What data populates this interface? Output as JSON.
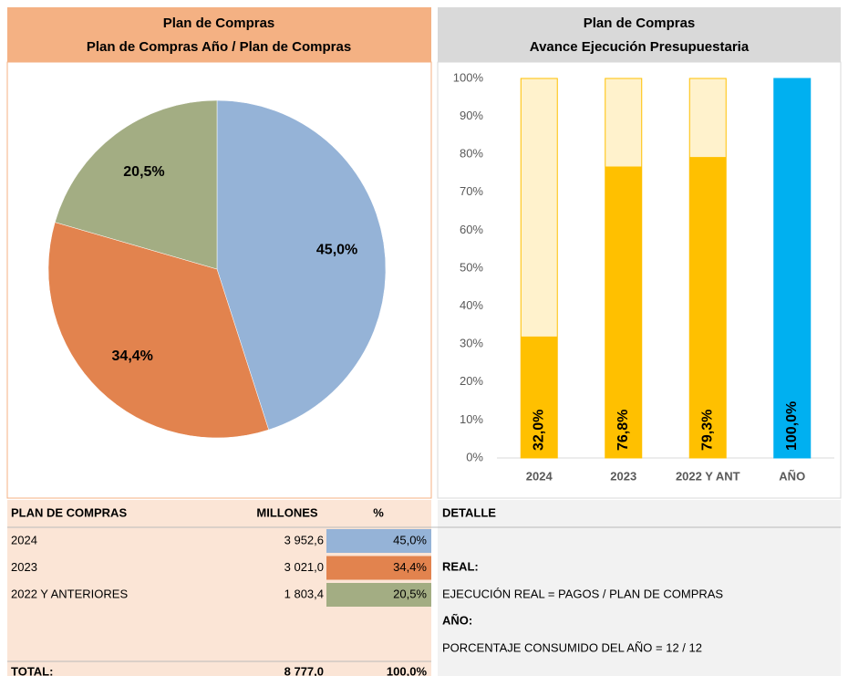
{
  "chart_data": [
    {
      "type": "pie",
      "title": "Plan de Compras",
      "subtitle": "Plan de Compras Año / Plan de Compras",
      "values": [
        45.0,
        34.4,
        20.5
      ],
      "value_labels": [
        "45,0%",
        "34,4%",
        "20,5%"
      ],
      "colors": [
        "#95b3d7",
        "#e2834e",
        "#a3ad83"
      ]
    },
    {
      "type": "bar",
      "title": "Plan de Compras",
      "subtitle": "Avance Ejecución Presupuestaria",
      "categories": [
        "2024",
        "2023",
        "2022 Y ANT",
        "AÑO"
      ],
      "values": [
        32.0,
        76.8,
        79.3,
        100.0
      ],
      "value_labels": [
        "32,0%",
        "76,8%",
        "79,3%",
        "100,0%"
      ],
      "colors": [
        "#ffc000",
        "#ffc000",
        "#ffc000",
        "#00b0f0"
      ],
      "track_color": "#fff2cc",
      "ylim": [
        0,
        100
      ],
      "yticks": [
        {
          "value": 0,
          "label": "0%"
        },
        {
          "value": 10,
          "label": "10%"
        },
        {
          "value": 20,
          "label": "20%"
        },
        {
          "value": 30,
          "label": "30%"
        },
        {
          "value": 40,
          "label": "40%"
        },
        {
          "value": 50,
          "label": "50%"
        },
        {
          "value": 60,
          "label": "60%"
        },
        {
          "value": 70,
          "label": "70%"
        },
        {
          "value": 80,
          "label": "80%"
        },
        {
          "value": 90,
          "label": "90%"
        },
        {
          "value": 100,
          "label": "100%"
        }
      ]
    }
  ],
  "table": {
    "headers": [
      "PLAN DE COMPRAS",
      "MILLONES",
      "%"
    ],
    "rows": [
      [
        "2024",
        "3 952,6",
        "45,0%"
      ],
      [
        "2023",
        "3 021,0",
        "34,4%"
      ],
      [
        "2022 Y ANTERIORES",
        "1 803,4",
        "20,5%"
      ]
    ],
    "total": [
      "TOTAL:",
      "8 777,0",
      "100,0%"
    ]
  },
  "detail": {
    "header": "DETALLE",
    "real_title": "REAL:",
    "real_text": "EJECUCIÓN REAL = PAGOS / PLAN DE COMPRAS",
    "year_title": "AÑO:",
    "year_text": "PORCENTAJE CONSUMIDO DEL AÑO = 12 / 12"
  }
}
